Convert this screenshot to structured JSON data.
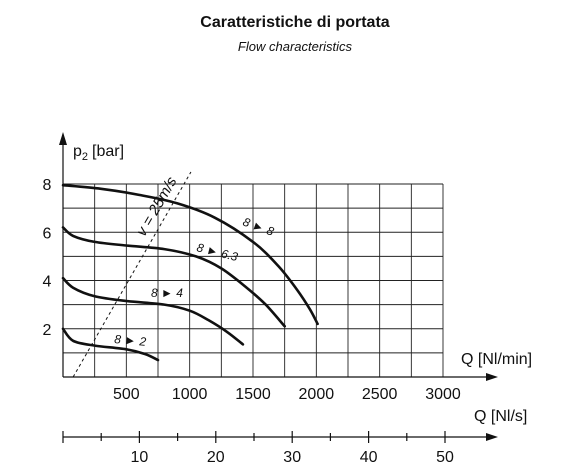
{
  "chart_data": {
    "type": "line",
    "title": "Caratteristiche di portata",
    "subtitle": "Flow characteristics",
    "ylabel_base": "p",
    "ylabel_sub": "2",
    "ylabel_unit": "[bar]",
    "xlabel": "Q [Nl/min]",
    "x2label": "Q [Nl/s]",
    "xlim": [
      0,
      3000
    ],
    "ylim": [
      0,
      8
    ],
    "x_ticks": [
      500,
      1000,
      1500,
      2000,
      2500,
      3000
    ],
    "y_ticks": [
      2,
      4,
      6,
      8
    ],
    "x2_ticks": [
      10,
      20,
      30,
      40,
      50
    ],
    "x2_range": [
      0,
      50
    ],
    "grid": true,
    "velocity_line": {
      "label": "v = 25m/s",
      "points": [
        [
          80,
          0
        ],
        [
          1010,
          8.5
        ]
      ]
    },
    "series": [
      {
        "name": "8 ► 8",
        "points": [
          [
            0,
            7.95
          ],
          [
            300,
            7.8
          ],
          [
            600,
            7.55
          ],
          [
            900,
            7.2
          ],
          [
            1200,
            6.6
          ],
          [
            1500,
            5.6
          ],
          [
            1700,
            4.6
          ],
          [
            1850,
            3.6
          ],
          [
            1950,
            2.8
          ],
          [
            2010,
            2.2
          ]
        ]
      },
      {
        "name": "8 ► 6.3",
        "points": [
          [
            0,
            6.2
          ],
          [
            80,
            5.85
          ],
          [
            250,
            5.6
          ],
          [
            500,
            5.45
          ],
          [
            800,
            5.3
          ],
          [
            1050,
            5.0
          ],
          [
            1250,
            4.5
          ],
          [
            1450,
            3.7
          ],
          [
            1600,
            3.0
          ],
          [
            1750,
            2.1
          ]
        ]
      },
      {
        "name": "8 ► 4",
        "points": [
          [
            0,
            4.1
          ],
          [
            80,
            3.7
          ],
          [
            250,
            3.35
          ],
          [
            500,
            3.15
          ],
          [
            800,
            3.0
          ],
          [
            1000,
            2.75
          ],
          [
            1150,
            2.35
          ],
          [
            1300,
            1.85
          ],
          [
            1420,
            1.35
          ]
        ]
      },
      {
        "name": "8 ► 2",
        "points": [
          [
            0,
            2.0
          ],
          [
            80,
            1.5
          ],
          [
            250,
            1.3
          ],
          [
            500,
            1.15
          ],
          [
            650,
            0.95
          ],
          [
            750,
            0.7
          ]
        ]
      }
    ]
  }
}
